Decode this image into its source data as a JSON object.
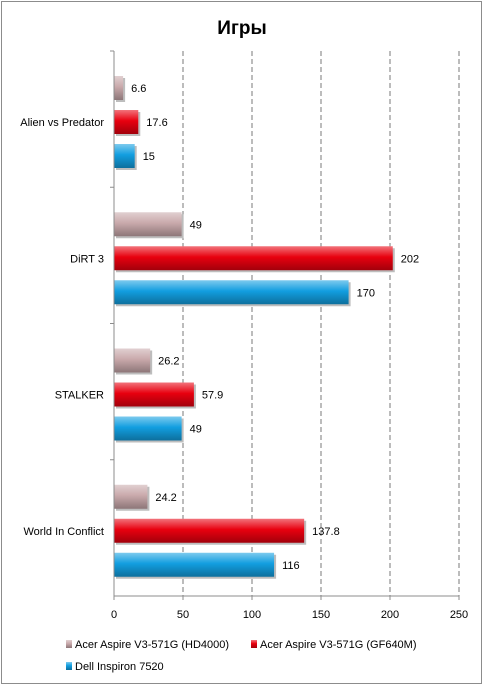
{
  "chart_data": {
    "type": "bar",
    "orientation": "horizontal",
    "title": "Игры",
    "categories": [
      "Alien vs Predator",
      "DiRT 3",
      "STALKER",
      "World In Conflict"
    ],
    "series": [
      {
        "name": "Acer Aspire V3-571G (HD4000)",
        "color": "#c9a9ab",
        "values": [
          6.6,
          49,
          26.2,
          24.2
        ],
        "labels": [
          "6.6",
          "49",
          "26.2",
          "24.2"
        ]
      },
      {
        "name": "Acer Aspire V3-571G (GF640M)",
        "color": "#e8000f",
        "values": [
          17.6,
          202,
          57.9,
          137.8
        ],
        "labels": [
          "17.6",
          "202",
          "57.9",
          "137.8"
        ]
      },
      {
        "name": "Dell Inspiron 7520",
        "color": "#129ee0",
        "values": [
          15,
          170,
          49,
          116
        ],
        "labels": [
          "15",
          "170",
          "49",
          "116"
        ]
      }
    ],
    "xlim": [
      0,
      250
    ],
    "ticks": [
      0,
      50,
      100,
      150,
      200,
      250
    ],
    "grid": "vertical dashed",
    "legend_position": "bottom"
  }
}
